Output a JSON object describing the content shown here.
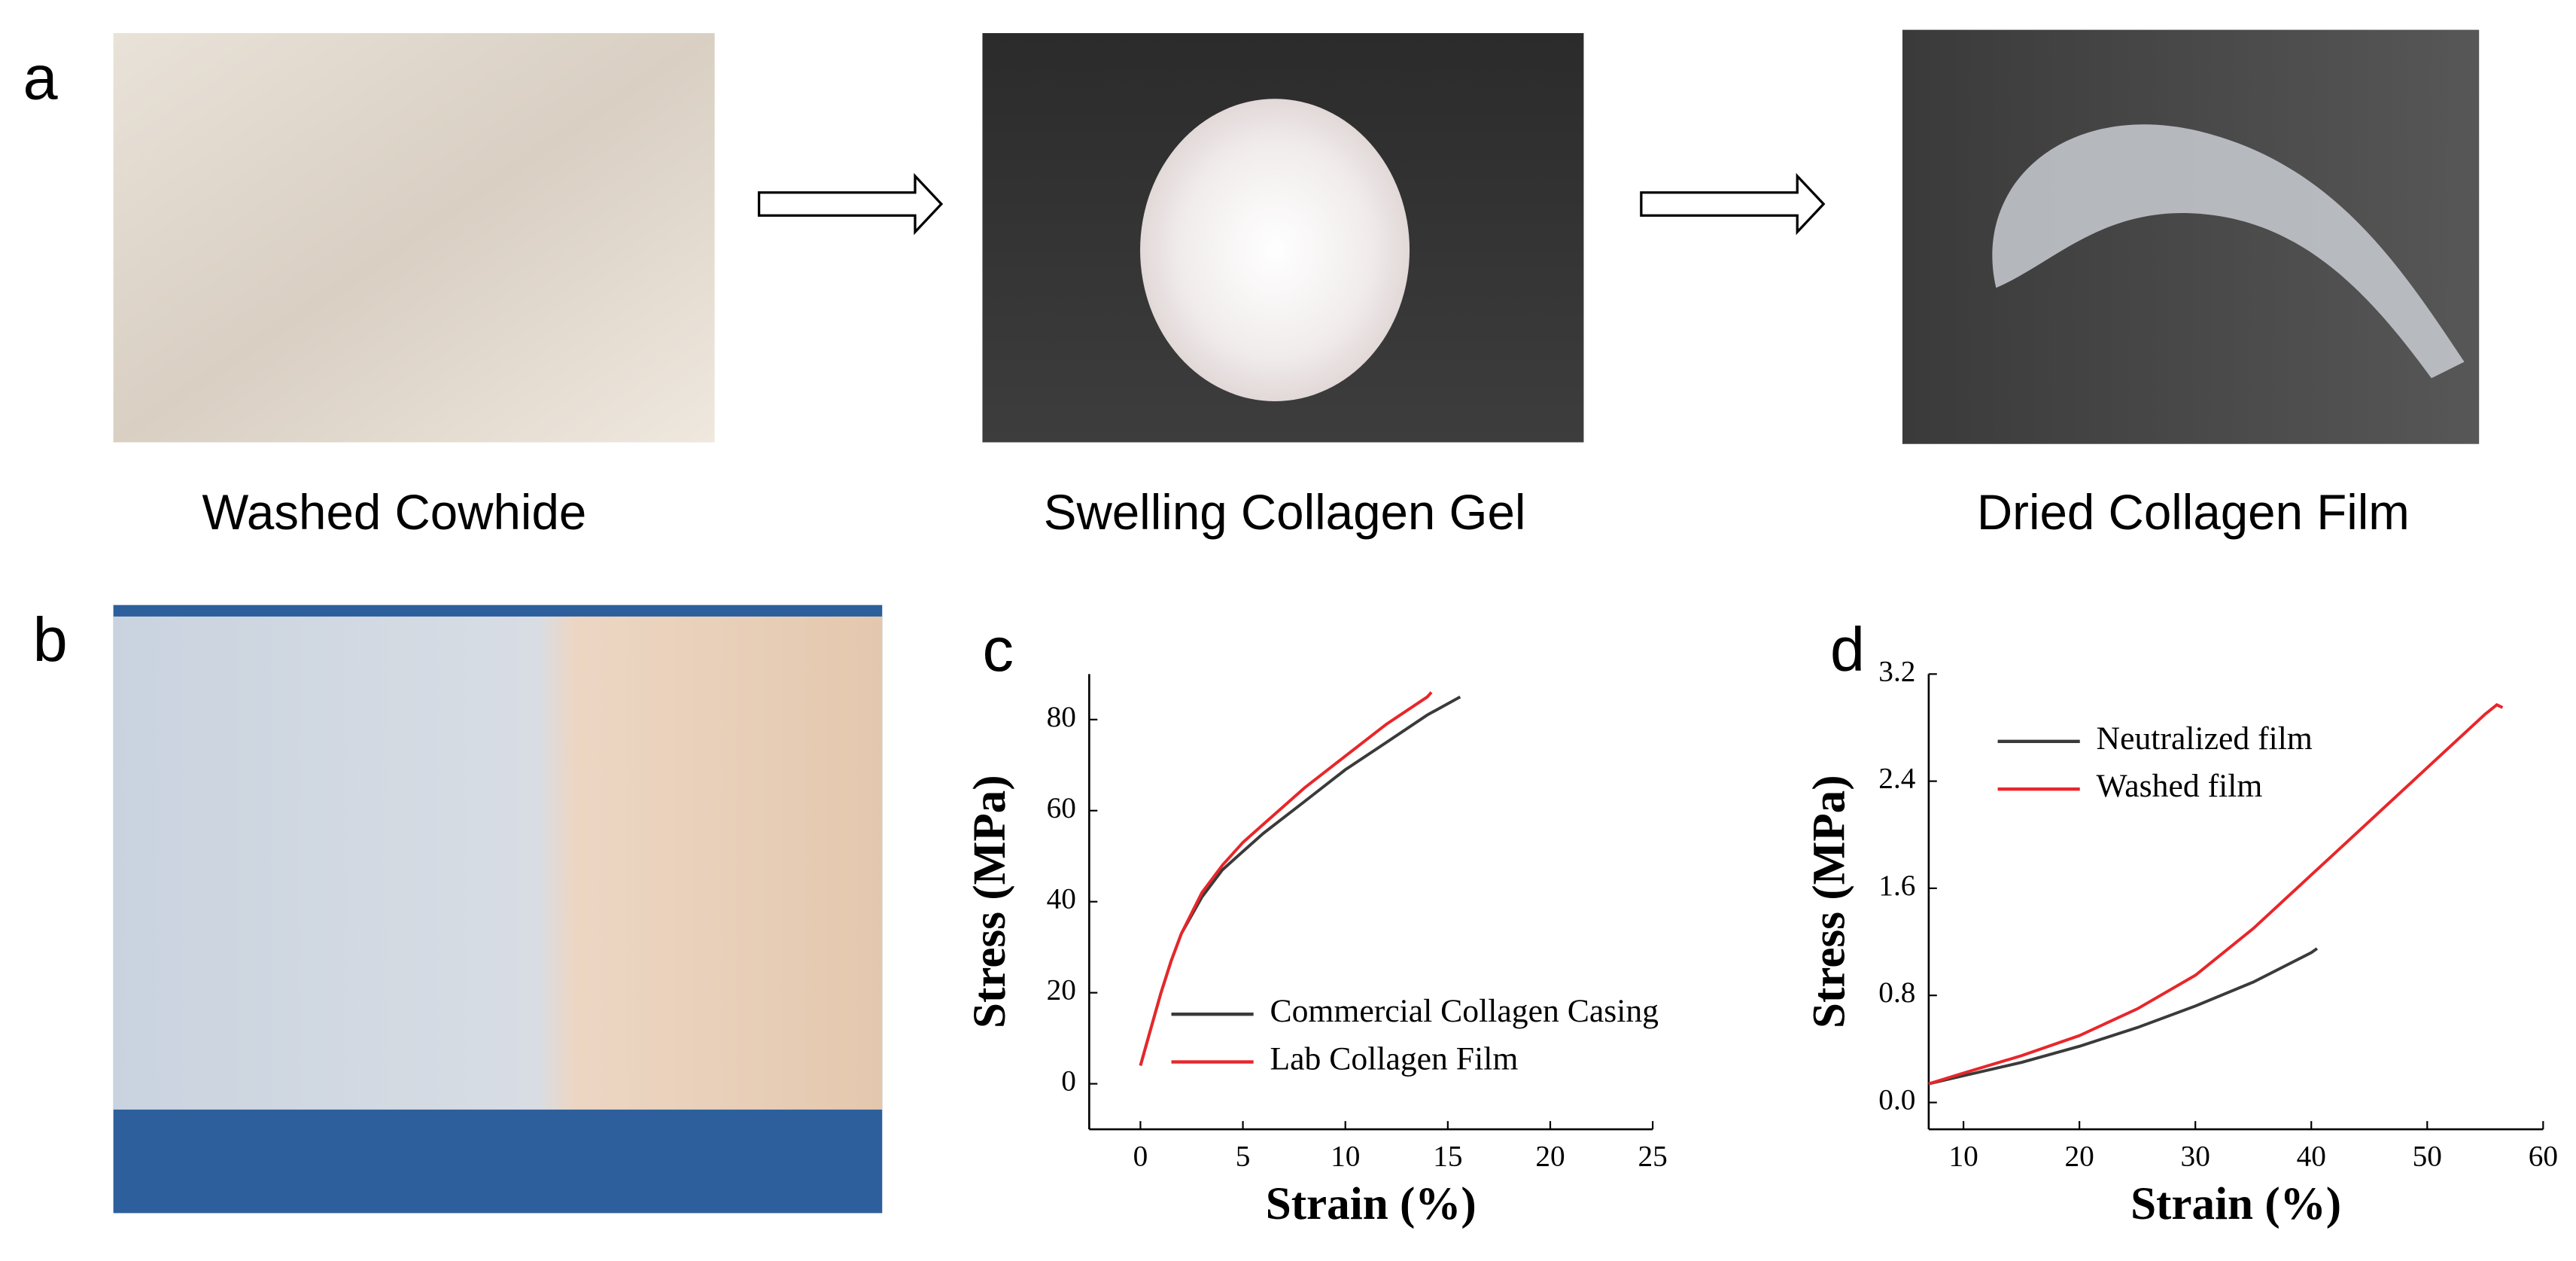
{
  "panel_labels": [
    "a",
    "b",
    "c",
    "d"
  ],
  "captions": [
    "Washed Cowhide",
    "Swelling Collagen Gel",
    "Dried Collagen Film"
  ],
  "chart_data": [
    {
      "type": "line",
      "x_label": "Strain (%)",
      "y_label": "Stress (MPa)",
      "xlim": [
        -2.5,
        25
      ],
      "ylim": [
        -10,
        90
      ],
      "xticks": [
        0,
        5,
        10,
        15,
        20,
        25
      ],
      "yticks": [
        0,
        20,
        40,
        60,
        80
      ],
      "legend": "lower right",
      "series": [
        {
          "name": "Commercial Collagen Casing",
          "color": "#3a3a3a",
          "x": [
            0,
            0.5,
            1,
            1.5,
            2,
            3,
            4,
            5,
            6,
            8,
            10,
            12,
            14,
            15.6
          ],
          "values": [
            4,
            12,
            20,
            27,
            33,
            41,
            47,
            51,
            55,
            62,
            69,
            75,
            81,
            85
          ]
        },
        {
          "name": "Lab Collagen Film",
          "color": "#e8262a",
          "x": [
            0,
            0.5,
            1,
            1.5,
            2,
            3,
            4,
            5,
            6,
            8,
            10,
            12,
            14,
            14.2
          ],
          "values": [
            4,
            12,
            20,
            27,
            33,
            42,
            48,
            53,
            57,
            65,
            72,
            79,
            85,
            86
          ]
        }
      ]
    },
    {
      "type": "line",
      "x_label": "Strain (%)",
      "y_label": "Stress (MPa)",
      "xlim": [
        7,
        60
      ],
      "ylim": [
        -0.2,
        3.2
      ],
      "xticks": [
        10,
        20,
        30,
        40,
        50,
        60
      ],
      "yticks": [
        {
          "value": 0,
          "label": "0.0"
        },
        0.8,
        1.6,
        2.4,
        3.2
      ],
      "legend": "upper left",
      "series": [
        {
          "name": "Neutralized film",
          "color": "#3a3a3a",
          "x": [
            7,
            10,
            15,
            20,
            25,
            30,
            35,
            40,
            40.5
          ],
          "values": [
            0.14,
            0.2,
            0.3,
            0.42,
            0.56,
            0.72,
            0.9,
            1.12,
            1.15
          ]
        },
        {
          "name": "Washed film",
          "color": "#e8262a",
          "x": [
            7,
            10,
            15,
            20,
            25,
            30,
            35,
            40,
            45,
            50,
            55,
            56,
            56.5
          ],
          "values": [
            0.14,
            0.22,
            0.35,
            0.5,
            0.7,
            0.95,
            1.3,
            1.7,
            2.1,
            2.5,
            2.9,
            2.97,
            2.95
          ]
        }
      ]
    }
  ]
}
